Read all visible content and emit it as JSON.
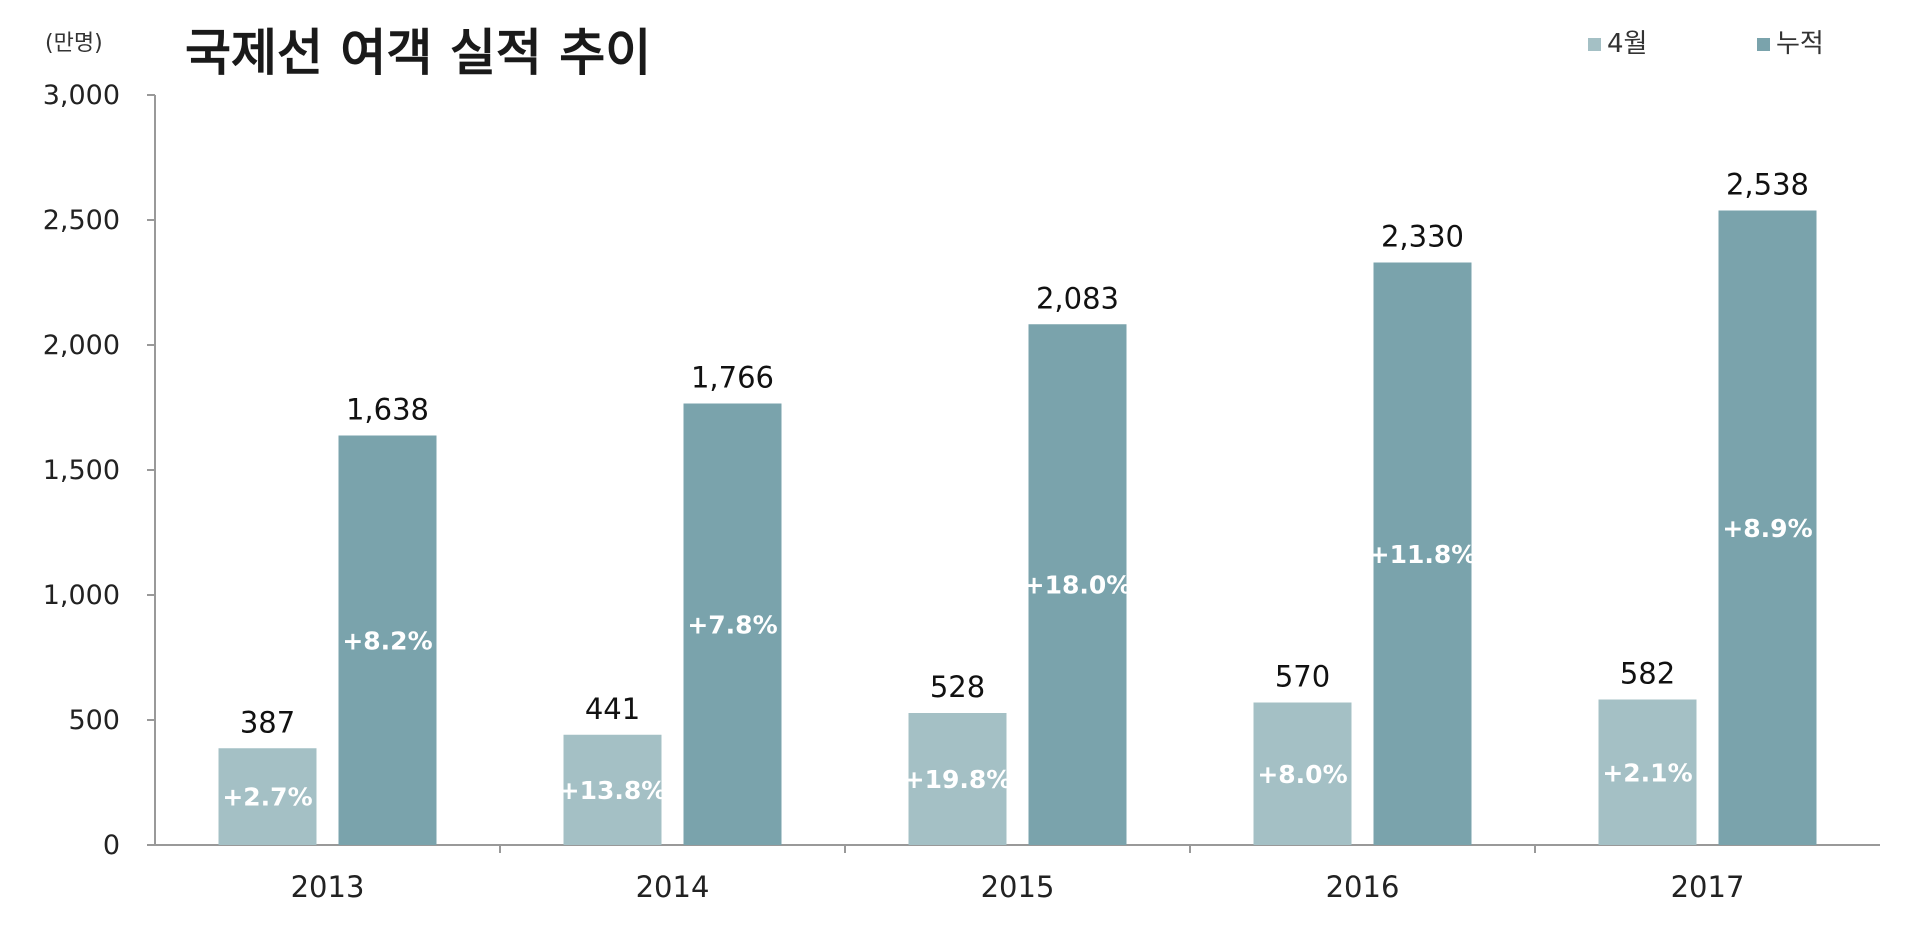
{
  "chart_data": {
    "type": "bar",
    "title": "국제선 여객 실적 추이",
    "unit": "(만명)",
    "categories": [
      "2013",
      "2014",
      "2015",
      "2016",
      "2017"
    ],
    "series": [
      {
        "name": "4월",
        "color": "#a4c0c5",
        "values": [
          387,
          441,
          528,
          570,
          582
        ],
        "labels": [
          "387",
          "441",
          "528",
          "570",
          "582"
        ],
        "growth": [
          "+2.7%",
          "+13.8%",
          "+19.8%",
          "+8.0%",
          "+2.1%"
        ]
      },
      {
        "name": "누적",
        "color": "#7aa3ac",
        "values": [
          1638,
          1766,
          2083,
          2330,
          2538
        ],
        "labels": [
          "1,638",
          "1,766",
          "2,083",
          "2,330",
          "2,538"
        ],
        "growth": [
          "+8.2%",
          "+7.8%",
          "+18.0%",
          "+11.8%",
          "+8.9%"
        ]
      }
    ],
    "ylim": [
      0,
      3000
    ],
    "yticks": [
      0,
      500,
      1000,
      1500,
      2000,
      2500,
      3000
    ],
    "ytick_labels": [
      "0",
      "500",
      "1,000",
      "1,500",
      "2,000",
      "2,500",
      "3,000"
    ],
    "legend_position": "top-right",
    "grid": false
  }
}
